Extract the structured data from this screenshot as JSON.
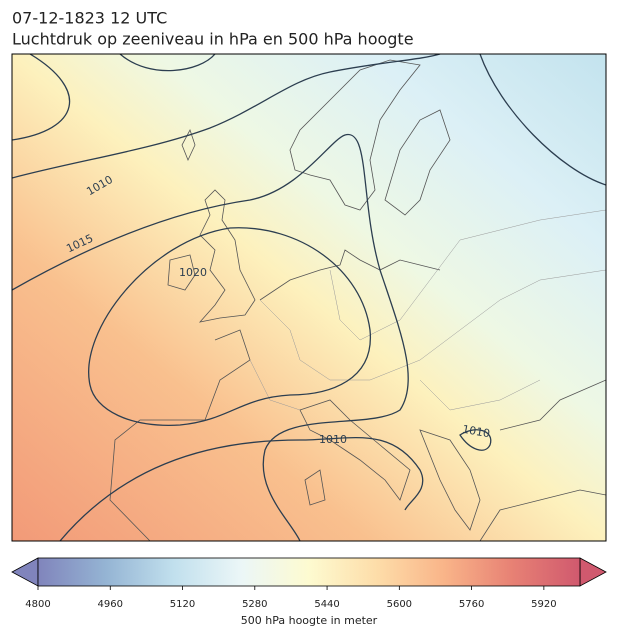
{
  "header": {
    "time": "07-12-1823 12 UTC",
    "title": "Luchtdruk op zeeniveau in hPa en 500 hPa hoogte"
  },
  "map": {
    "isobar_labels": [
      "1010",
      "1015",
      "1020",
      "1010",
      "1010"
    ]
  },
  "colorbar": {
    "label": "500 hPa hoogte in meter",
    "lim": [
      4800,
      6000
    ],
    "ticks": [
      4800,
      4960,
      5120,
      5280,
      5440,
      5600,
      5760,
      5920
    ],
    "colors": [
      "#6a6fb0",
      "#82a7cc",
      "#b6daea",
      "#e8f5f6",
      "#fdfac8",
      "#fdd79a",
      "#f8a774",
      "#e36b5c",
      "#c83c55"
    ]
  }
}
